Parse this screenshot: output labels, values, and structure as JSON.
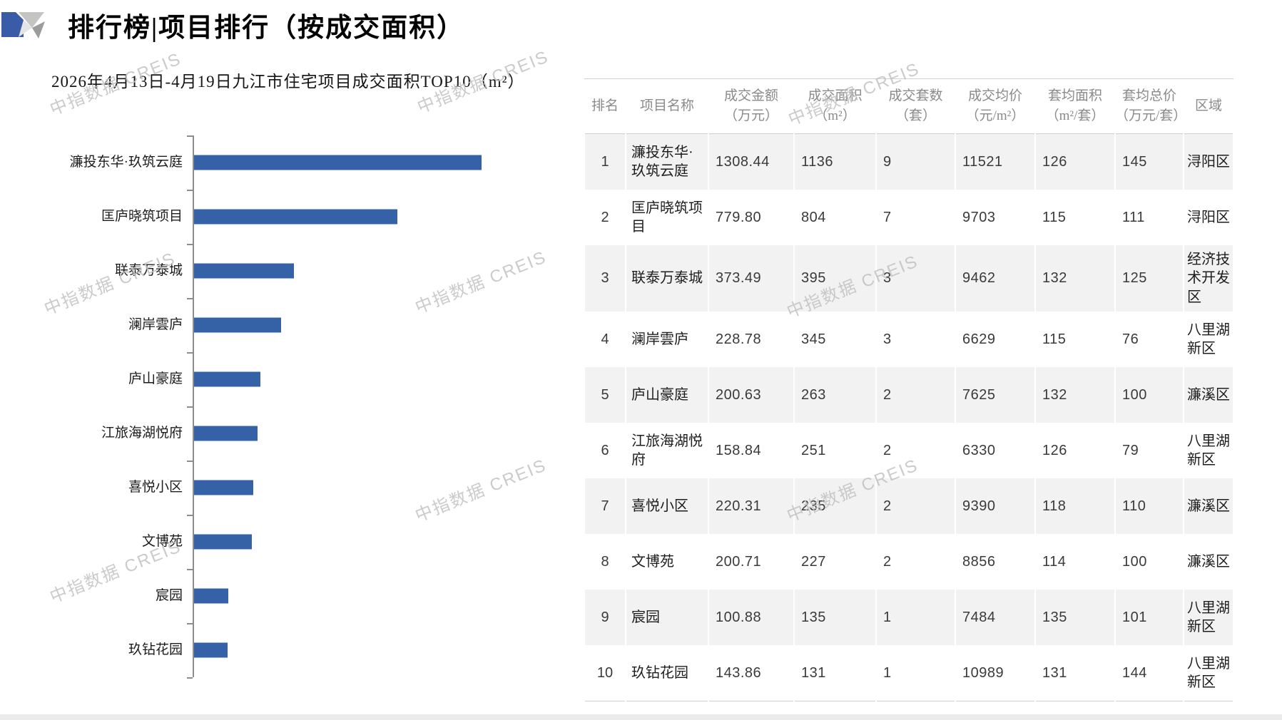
{
  "page": {
    "background": "#ffffff"
  },
  "header": {
    "title": "排行榜|项目排行（按成交面积）",
    "logo": {
      "name": "creis-logo",
      "blue": "#3a5ca8",
      "gray_light": "#c4c4c4",
      "gray_mid": "#9c9c9c",
      "gray_pale": "#e4e4e4"
    }
  },
  "watermark": {
    "text": "中指数据 CREIS",
    "color": "#c2c2c2"
  },
  "chart_data": {
    "type": "bar",
    "orientation": "horizontal",
    "title": "2026年4月13日-4月19日九江市住宅项目成交面积TOP10（m²）",
    "categories": [
      "濂投东华·玖筑云庭",
      "匡庐晓筑项目",
      "联泰万泰城",
      "澜岸雲庐",
      "庐山豪庭",
      "江旅海湖悦府",
      "喜悦小区",
      "文博苑",
      "宸园",
      "玖钻花园"
    ],
    "values": [
      1136,
      804,
      395,
      345,
      263,
      251,
      235,
      227,
      135,
      131
    ],
    "series_name": "成交面积（m²）",
    "xlabel": "",
    "ylabel": "",
    "xlim": [
      0,
      1200
    ],
    "grid": false,
    "legend": false,
    "bar_color": "#3561a7",
    "axis_color": "#8c8c8c"
  },
  "table": {
    "columns": [
      {
        "label": "排名"
      },
      {
        "label": "项目名称"
      },
      {
        "label": "成交金额\n（万元）"
      },
      {
        "label": "成交面积\n（m²）"
      },
      {
        "label": "成交套数\n（套）"
      },
      {
        "label": "成交均价\n（元/m²）"
      },
      {
        "label": "套均面积\n（m²/套）"
      },
      {
        "label": "套均总价\n（万元/套）"
      },
      {
        "label": "区域"
      }
    ],
    "rows": [
      {
        "rank": "1",
        "name": "濂投东华·玖筑云庭",
        "amount": "1308.44",
        "area": "1136",
        "units": "9",
        "avg_price": "11521",
        "avg_area": "126",
        "avg_total": "145",
        "district": "浔阳区"
      },
      {
        "rank": "2",
        "name": "匡庐晓筑项目",
        "amount": "779.80",
        "area": "804",
        "units": "7",
        "avg_price": "9703",
        "avg_area": "115",
        "avg_total": "111",
        "district": "浔阳区"
      },
      {
        "rank": "3",
        "name": "联泰万泰城",
        "amount": "373.49",
        "area": "395",
        "units": "3",
        "avg_price": "9462",
        "avg_area": "132",
        "avg_total": "125",
        "district": "经济技术开发区"
      },
      {
        "rank": "4",
        "name": "澜岸雲庐",
        "amount": "228.78",
        "area": "345",
        "units": "3",
        "avg_price": "6629",
        "avg_area": "115",
        "avg_total": "76",
        "district": "八里湖新区"
      },
      {
        "rank": "5",
        "name": "庐山豪庭",
        "amount": "200.63",
        "area": "263",
        "units": "2",
        "avg_price": "7625",
        "avg_area": "132",
        "avg_total": "100",
        "district": "濂溪区"
      },
      {
        "rank": "6",
        "name": "江旅海湖悦府",
        "amount": "158.84",
        "area": "251",
        "units": "2",
        "avg_price": "6330",
        "avg_area": "126",
        "avg_total": "79",
        "district": "八里湖新区"
      },
      {
        "rank": "7",
        "name": "喜悦小区",
        "amount": "220.31",
        "area": "235",
        "units": "2",
        "avg_price": "9390",
        "avg_area": "118",
        "avg_total": "110",
        "district": "濂溪区"
      },
      {
        "rank": "8",
        "name": "文博苑",
        "amount": "200.71",
        "area": "227",
        "units": "2",
        "avg_price": "8856",
        "avg_area": "114",
        "avg_total": "100",
        "district": "濂溪区"
      },
      {
        "rank": "9",
        "name": "宸园",
        "amount": "100.88",
        "area": "135",
        "units": "1",
        "avg_price": "7484",
        "avg_area": "135",
        "avg_total": "101",
        "district": "八里湖新区"
      },
      {
        "rank": "10",
        "name": "玖钻花园",
        "amount": "143.86",
        "area": "131",
        "units": "1",
        "avg_price": "10989",
        "avg_area": "131",
        "avg_total": "144",
        "district": "八里湖新区"
      }
    ]
  },
  "footer": {
    "strip_color": "#ebebeb"
  }
}
